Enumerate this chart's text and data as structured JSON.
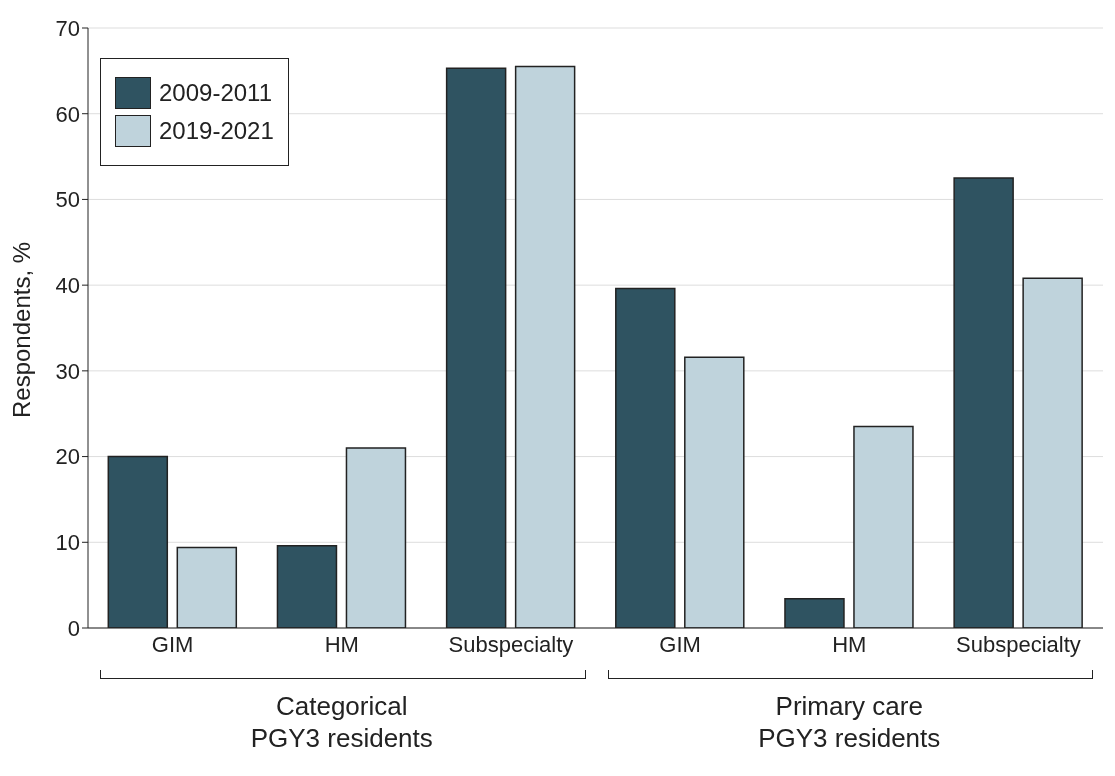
{
  "chart_data": {
    "type": "bar",
    "ylabel": "Respondents, %",
    "categories": [
      "GIM",
      "HM",
      "Subspecialty",
      "GIM",
      "HM",
      "Subspecialty"
    ],
    "series": [
      {
        "name": "2009-2011",
        "color": "#2f5361",
        "values": [
          20,
          9.6,
          65.3,
          39.6,
          3.4,
          52.5
        ]
      },
      {
        "name": "2019-2021",
        "color": "#bfd3dc",
        "values": [
          9.4,
          21,
          65.5,
          31.6,
          23.5,
          40.8
        ]
      }
    ],
    "ylim": [
      0,
      70
    ],
    "yticks": [
      0,
      10,
      20,
      30,
      40,
      50,
      60,
      70
    ],
    "grid": "y",
    "legend": "top left",
    "annotations": [
      "Categorical\nPGY3 residents",
      "Primary care\nPGY3 residents"
    ]
  }
}
